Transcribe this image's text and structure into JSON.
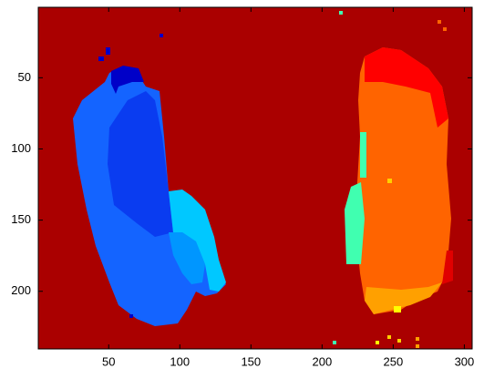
{
  "chart_data": {
    "type": "image",
    "xlim": [
      0.5,
      305.5
    ],
    "ylim": [
      0.5,
      240.5
    ],
    "xticks": [
      50,
      100,
      150,
      200,
      250,
      300
    ],
    "yticks": [
      50,
      100,
      150,
      200
    ],
    "y_reversed": true
  }
}
